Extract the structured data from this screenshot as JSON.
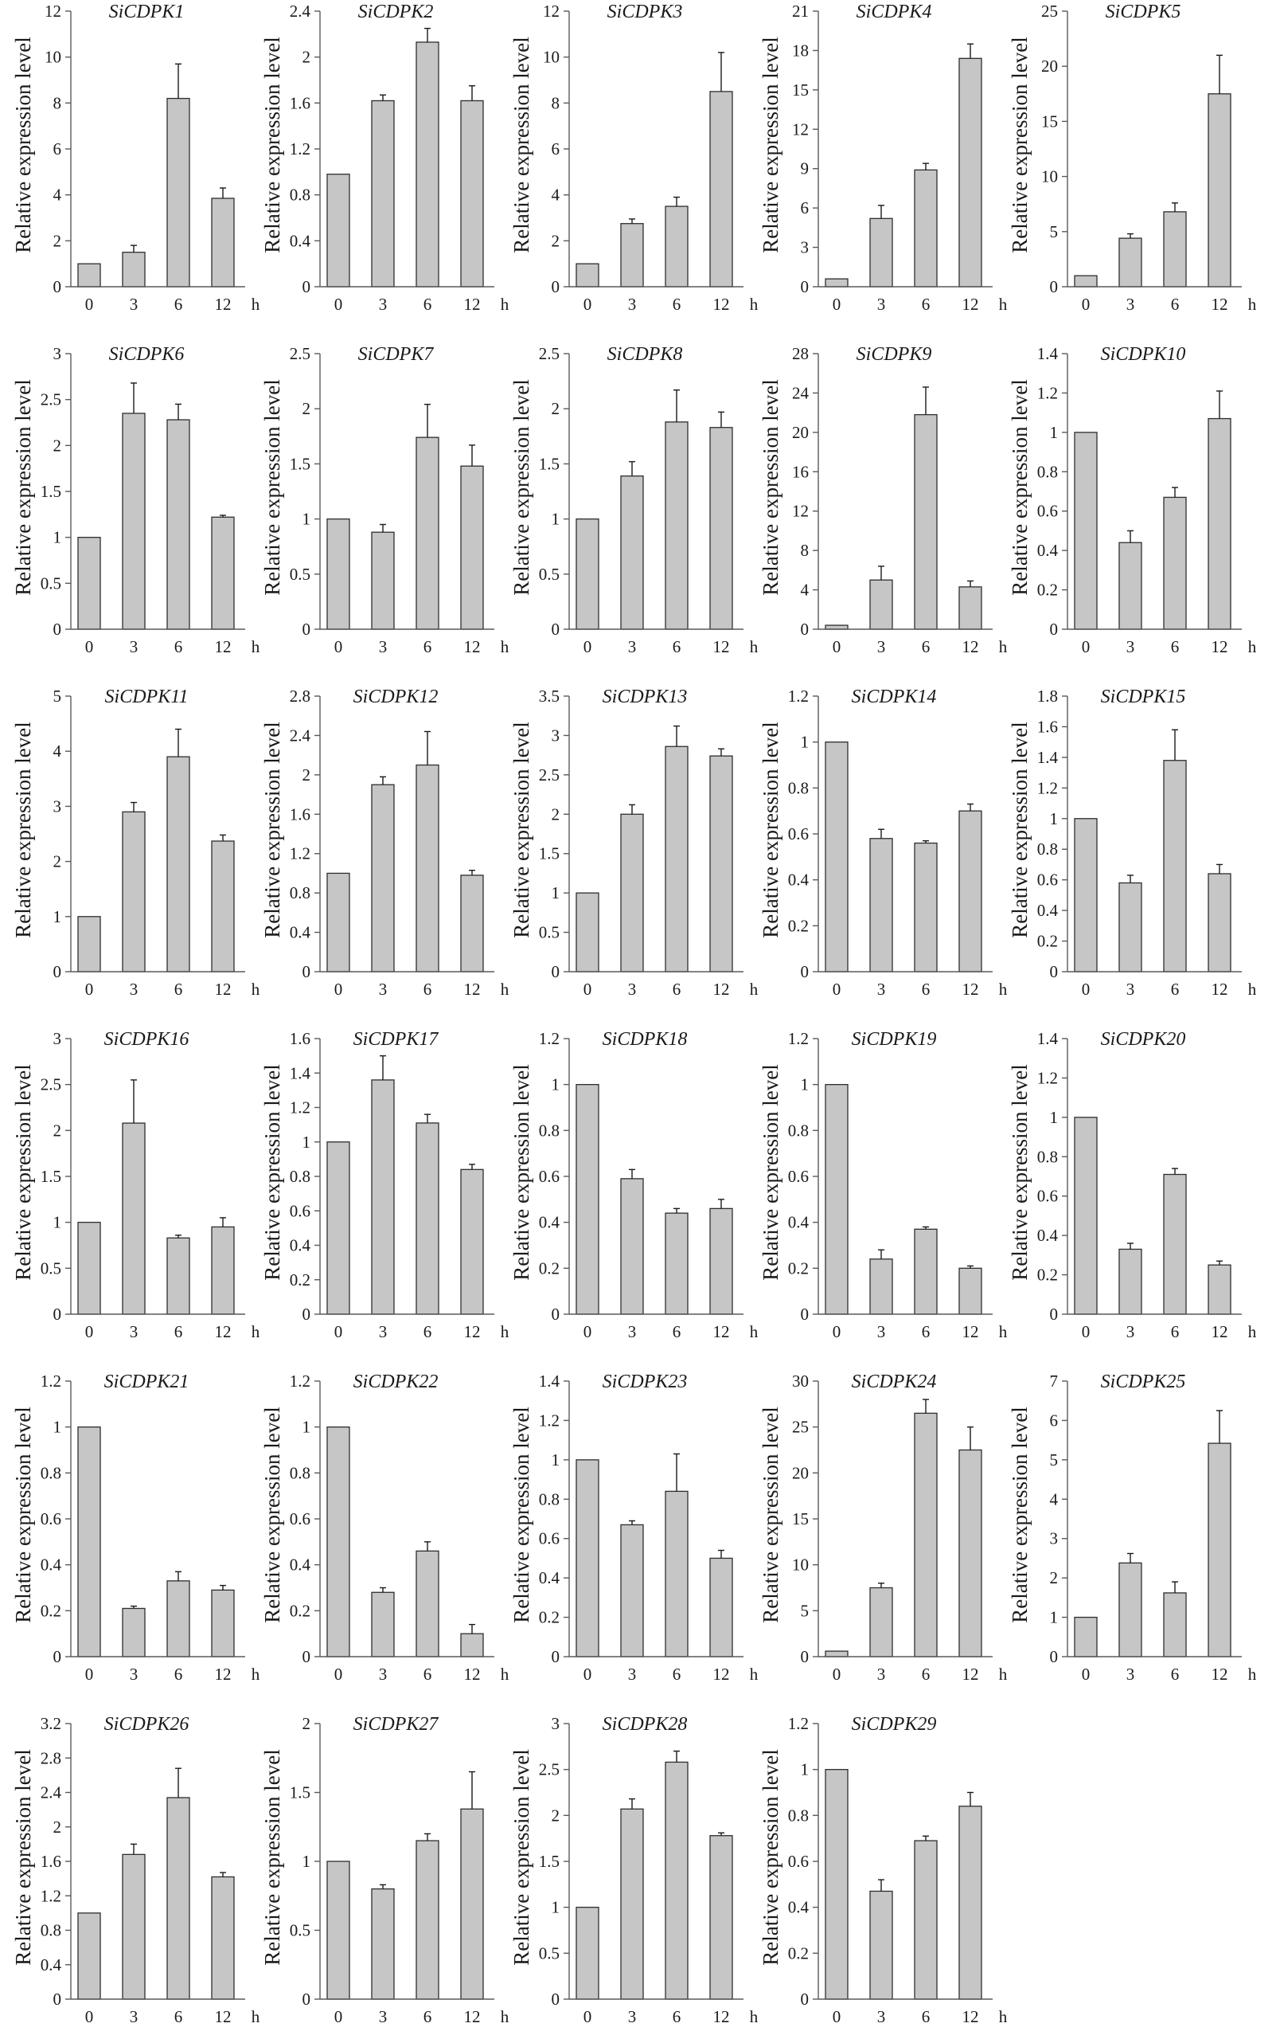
{
  "colors": {
    "bar_fill": "#c6c6c6",
    "bar_stroke": "#2e2e2e",
    "axis": "#5a5a5a",
    "error_bar": "#1a1a1a",
    "background": "#ffffff"
  },
  "chart_data": [
    {
      "type": "bar",
      "title": "SiCDPK1",
      "categories": [
        "0",
        "3",
        "6",
        "12"
      ],
      "values": [
        1.0,
        1.5,
        8.2,
        3.85
      ],
      "errors": [
        0,
        0.3,
        1.5,
        0.45
      ],
      "xlabel": "h",
      "ylabel": "Relative expression level",
      "ylim": [
        0,
        12
      ],
      "yticks": [
        0,
        2,
        4,
        6,
        8,
        10,
        12
      ]
    },
    {
      "type": "bar",
      "title": "SiCDPK2",
      "categories": [
        "0",
        "3",
        "6",
        "12"
      ],
      "values": [
        0.98,
        1.62,
        2.13,
        1.62
      ],
      "errors": [
        0,
        0.05,
        0.12,
        0.13
      ],
      "xlabel": "h",
      "ylabel": "Relative expression level",
      "ylim": [
        0,
        2.4
      ],
      "yticks": [
        0,
        0.4,
        0.8,
        1.2,
        1.6,
        2,
        2.4
      ]
    },
    {
      "type": "bar",
      "title": "SiCDPK3",
      "categories": [
        "0",
        "3",
        "6",
        "12"
      ],
      "values": [
        1.0,
        2.75,
        3.5,
        8.5
      ],
      "errors": [
        0,
        0.2,
        0.4,
        1.7
      ],
      "xlabel": "h",
      "ylabel": "Relative expression level",
      "ylim": [
        0,
        12
      ],
      "yticks": [
        0,
        2,
        4,
        6,
        8,
        10,
        12
      ]
    },
    {
      "type": "bar",
      "title": "SiCDPK4",
      "categories": [
        "0",
        "3",
        "6",
        "12"
      ],
      "values": [
        0.6,
        5.2,
        8.9,
        17.4
      ],
      "errors": [
        0,
        1.0,
        0.5,
        1.1
      ],
      "xlabel": "h",
      "ylabel": "Relative expression level",
      "ylim": [
        0,
        21
      ],
      "yticks": [
        0,
        3,
        6,
        9,
        12,
        15,
        18,
        21
      ]
    },
    {
      "type": "bar",
      "title": "SiCDPK5",
      "categories": [
        "0",
        "3",
        "6",
        "12"
      ],
      "values": [
        1.0,
        4.4,
        6.8,
        17.5
      ],
      "errors": [
        0,
        0.4,
        0.8,
        3.5
      ],
      "xlabel": "h",
      "ylabel": "Relative expression level",
      "ylim": [
        0,
        25
      ],
      "yticks": [
        0,
        5,
        10,
        15,
        20,
        25
      ]
    },
    {
      "type": "bar",
      "title": "SiCDPK6",
      "categories": [
        "0",
        "3",
        "6",
        "12"
      ],
      "values": [
        1.0,
        2.35,
        2.28,
        1.22
      ],
      "errors": [
        0,
        0.33,
        0.17,
        0.02
      ],
      "xlabel": "h",
      "ylabel": "Relative expression level",
      "ylim": [
        0,
        3
      ],
      "yticks": [
        0,
        0.5,
        1,
        1.5,
        2,
        2.5,
        3
      ]
    },
    {
      "type": "bar",
      "title": "SiCDPK7",
      "categories": [
        "0",
        "3",
        "6",
        "12"
      ],
      "values": [
        1.0,
        0.88,
        1.74,
        1.48
      ],
      "errors": [
        0,
        0.07,
        0.3,
        0.19
      ],
      "xlabel": "h",
      "ylabel": "Relative expression level",
      "ylim": [
        0,
        2.5
      ],
      "yticks": [
        0,
        0.5,
        1,
        1.5,
        2,
        2.5
      ]
    },
    {
      "type": "bar",
      "title": "SiCDPK8",
      "categories": [
        "0",
        "3",
        "6",
        "12"
      ],
      "values": [
        1.0,
        1.39,
        1.88,
        1.83
      ],
      "errors": [
        0,
        0.13,
        0.29,
        0.14
      ],
      "xlabel": "h",
      "ylabel": "Relative expression level",
      "ylim": [
        0,
        2.5
      ],
      "yticks": [
        0,
        0.5,
        1,
        1.5,
        2,
        2.5
      ]
    },
    {
      "type": "bar",
      "title": "SiCDPK9",
      "categories": [
        "0",
        "3",
        "6",
        "12"
      ],
      "values": [
        0.4,
        5.0,
        21.8,
        4.3
      ],
      "errors": [
        0,
        1.4,
        2.8,
        0.6
      ],
      "xlabel": "h",
      "ylabel": "Relative expression level",
      "ylim": [
        0,
        28
      ],
      "yticks": [
        0,
        4,
        8,
        12,
        16,
        20,
        24,
        28
      ]
    },
    {
      "type": "bar",
      "title": "SiCDPK10",
      "categories": [
        "0",
        "3",
        "6",
        "12"
      ],
      "values": [
        1.0,
        0.44,
        0.67,
        1.07
      ],
      "errors": [
        0,
        0.06,
        0.05,
        0.14
      ],
      "xlabel": "h",
      "ylabel": "Relative expression level",
      "ylim": [
        0,
        1.4
      ],
      "yticks": [
        0,
        0.2,
        0.4,
        0.6,
        0.8,
        1,
        1.2,
        1.4
      ]
    },
    {
      "type": "bar",
      "title": "SiCDPK11",
      "categories": [
        "0",
        "3",
        "6",
        "12"
      ],
      "values": [
        1.0,
        2.9,
        3.9,
        2.37
      ],
      "errors": [
        0,
        0.17,
        0.5,
        0.11
      ],
      "xlabel": "h",
      "ylabel": "Relative expression level",
      "ylim": [
        0,
        5
      ],
      "yticks": [
        0,
        1,
        2,
        3,
        4,
        5
      ]
    },
    {
      "type": "bar",
      "title": "SiCDPK12",
      "categories": [
        "0",
        "3",
        "6",
        "12"
      ],
      "values": [
        1.0,
        1.9,
        2.1,
        0.98
      ],
      "errors": [
        0,
        0.08,
        0.34,
        0.05
      ],
      "xlabel": "h",
      "ylabel": "Relative expression level",
      "ylim": [
        0,
        2.8
      ],
      "yticks": [
        0,
        0.4,
        0.8,
        1.2,
        1.6,
        2,
        2.4,
        2.8
      ]
    },
    {
      "type": "bar",
      "title": "SiCDPK13",
      "categories": [
        "0",
        "3",
        "6",
        "12"
      ],
      "values": [
        1.0,
        2.0,
        2.86,
        2.74
      ],
      "errors": [
        0,
        0.12,
        0.26,
        0.09
      ],
      "xlabel": "h",
      "ylabel": "Relative expression level",
      "ylim": [
        0,
        3.5
      ],
      "yticks": [
        0,
        0.5,
        1,
        1.5,
        2,
        2.5,
        3,
        3.5
      ]
    },
    {
      "type": "bar",
      "title": "SiCDPK14",
      "categories": [
        "0",
        "3",
        "6",
        "12"
      ],
      "values": [
        1.0,
        0.58,
        0.56,
        0.7
      ],
      "errors": [
        0,
        0.04,
        0.01,
        0.03
      ],
      "xlabel": "h",
      "ylabel": "Relative expression level",
      "ylim": [
        0,
        1.2
      ],
      "yticks": [
        0,
        0.2,
        0.4,
        0.6,
        0.8,
        1,
        1.2
      ]
    },
    {
      "type": "bar",
      "title": "SiCDPK15",
      "categories": [
        "0",
        "3",
        "6",
        "12"
      ],
      "values": [
        1.0,
        0.58,
        1.38,
        0.64
      ],
      "errors": [
        0,
        0.05,
        0.2,
        0.06
      ],
      "xlabel": "h",
      "ylabel": "Relative expression level",
      "ylim": [
        0,
        1.8
      ],
      "yticks": [
        0,
        0.2,
        0.4,
        0.6,
        0.8,
        1,
        1.2,
        1.4,
        1.6,
        1.8
      ]
    },
    {
      "type": "bar",
      "title": "SiCDPK16",
      "categories": [
        "0",
        "3",
        "6",
        "12"
      ],
      "values": [
        1.0,
        2.08,
        0.83,
        0.95
      ],
      "errors": [
        0,
        0.47,
        0.03,
        0.1
      ],
      "xlabel": "h",
      "ylabel": "Relative expression level",
      "ylim": [
        0,
        3
      ],
      "yticks": [
        0,
        0.5,
        1,
        1.5,
        2,
        2.5,
        3
      ]
    },
    {
      "type": "bar",
      "title": "SiCDPK17",
      "categories": [
        "0",
        "3",
        "6",
        "12"
      ],
      "values": [
        1.0,
        1.36,
        1.11,
        0.84
      ],
      "errors": [
        0,
        0.14,
        0.05,
        0.03
      ],
      "xlabel": "h",
      "ylabel": "Relative expression level",
      "ylim": [
        0,
        1.6
      ],
      "yticks": [
        0,
        0.2,
        0.4,
        0.6,
        0.8,
        1,
        1.2,
        1.4,
        1.6
      ]
    },
    {
      "type": "bar",
      "title": "SiCDPK18",
      "categories": [
        "0",
        "3",
        "6",
        "12"
      ],
      "values": [
        1.0,
        0.59,
        0.44,
        0.46
      ],
      "errors": [
        0,
        0.04,
        0.02,
        0.04
      ],
      "xlabel": "h",
      "ylabel": "Relative expression level",
      "ylim": [
        0,
        1.2
      ],
      "yticks": [
        0,
        0.2,
        0.4,
        0.6,
        0.8,
        1,
        1.2
      ]
    },
    {
      "type": "bar",
      "title": "SiCDPK19",
      "categories": [
        "0",
        "3",
        "6",
        "12"
      ],
      "values": [
        1.0,
        0.24,
        0.37,
        0.2
      ],
      "errors": [
        0,
        0.04,
        0.01,
        0.01
      ],
      "xlabel": "h",
      "ylabel": "Relative expression level",
      "ylim": [
        0,
        1.2
      ],
      "yticks": [
        0,
        0.2,
        0.4,
        0.6,
        0.8,
        1,
        1.2
      ]
    },
    {
      "type": "bar",
      "title": "SiCDPK20",
      "categories": [
        "0",
        "3",
        "6",
        "12"
      ],
      "values": [
        1.0,
        0.33,
        0.71,
        0.25
      ],
      "errors": [
        0,
        0.03,
        0.03,
        0.02
      ],
      "xlabel": "h",
      "ylabel": "Relative expression level",
      "ylim": [
        0,
        1.4
      ],
      "yticks": [
        0,
        0.2,
        0.4,
        0.6,
        0.8,
        1,
        1.2,
        1.4
      ]
    },
    {
      "type": "bar",
      "title": "SiCDPK21",
      "categories": [
        "0",
        "3",
        "6",
        "12"
      ],
      "values": [
        1.0,
        0.21,
        0.33,
        0.29
      ],
      "errors": [
        0,
        0.01,
        0.04,
        0.02
      ],
      "xlabel": "h",
      "ylabel": "Relative expression level",
      "ylim": [
        0,
        1.2
      ],
      "yticks": [
        0,
        0.2,
        0.4,
        0.6,
        0.8,
        1,
        1.2
      ]
    },
    {
      "type": "bar",
      "title": "SiCDPK22",
      "categories": [
        "0",
        "3",
        "6",
        "12"
      ],
      "values": [
        1.0,
        0.28,
        0.46,
        0.1
      ],
      "errors": [
        0,
        0.02,
        0.04,
        0.04
      ],
      "xlabel": "h",
      "ylabel": "Relative expression level",
      "ylim": [
        0,
        1.2
      ],
      "yticks": [
        0,
        0.2,
        0.4,
        0.6,
        0.8,
        1,
        1.2
      ]
    },
    {
      "type": "bar",
      "title": "SiCDPK23",
      "categories": [
        "0",
        "3",
        "6",
        "12"
      ],
      "values": [
        1.0,
        0.67,
        0.84,
        0.5
      ],
      "errors": [
        0,
        0.02,
        0.19,
        0.04
      ],
      "xlabel": "h",
      "ylabel": "Relative expression level",
      "ylim": [
        0,
        1.4
      ],
      "yticks": [
        0,
        0.2,
        0.4,
        0.6,
        0.8,
        1,
        1.2,
        1.4
      ]
    },
    {
      "type": "bar",
      "title": "SiCDPK24",
      "categories": [
        "0",
        "3",
        "6",
        "12"
      ],
      "values": [
        0.6,
        7.5,
        26.5,
        22.5
      ],
      "errors": [
        0,
        0.5,
        1.5,
        2.5
      ],
      "xlabel": "h",
      "ylabel": "Relative expression level",
      "ylim": [
        0,
        30
      ],
      "yticks": [
        0,
        5,
        10,
        15,
        20,
        25,
        30
      ]
    },
    {
      "type": "bar",
      "title": "SiCDPK25",
      "categories": [
        "0",
        "3",
        "6",
        "12"
      ],
      "values": [
        1.0,
        2.38,
        1.62,
        5.42
      ],
      "errors": [
        0,
        0.24,
        0.28,
        0.83
      ],
      "xlabel": "h",
      "ylabel": "Relative expression level",
      "ylim": [
        0,
        7
      ],
      "yticks": [
        0,
        1,
        2,
        3,
        4,
        5,
        6,
        7
      ]
    },
    {
      "type": "bar",
      "title": "SiCDPK26",
      "categories": [
        "0",
        "3",
        "6",
        "12"
      ],
      "values": [
        1.0,
        1.68,
        2.34,
        1.42
      ],
      "errors": [
        0,
        0.12,
        0.34,
        0.05
      ],
      "xlabel": "h",
      "ylabel": "Relative expression level",
      "ylim": [
        0,
        3.2
      ],
      "yticks": [
        0,
        0.4,
        0.8,
        1.2,
        1.6,
        2,
        2.4,
        2.8,
        3.2
      ]
    },
    {
      "type": "bar",
      "title": "SiCDPK27",
      "categories": [
        "0",
        "3",
        "6",
        "12"
      ],
      "values": [
        1.0,
        0.8,
        1.15,
        1.38
      ],
      "errors": [
        0,
        0.03,
        0.05,
        0.27
      ],
      "xlabel": "h",
      "ylabel": "Relative expression level",
      "ylim": [
        0,
        2
      ],
      "yticks": [
        0,
        0.5,
        1,
        1.5,
        2
      ]
    },
    {
      "type": "bar",
      "title": "SiCDPK28",
      "categories": [
        "0",
        "3",
        "6",
        "12"
      ],
      "values": [
        1.0,
        2.07,
        2.58,
        1.78
      ],
      "errors": [
        0,
        0.11,
        0.12,
        0.03
      ],
      "xlabel": "h",
      "ylabel": "Relative expression level",
      "ylim": [
        0,
        3
      ],
      "yticks": [
        0,
        0.5,
        1,
        1.5,
        2,
        2.5,
        3
      ]
    },
    {
      "type": "bar",
      "title": "SiCDPK29",
      "categories": [
        "0",
        "3",
        "6",
        "12"
      ],
      "values": [
        1.0,
        0.47,
        0.69,
        0.84
      ],
      "errors": [
        0,
        0.05,
        0.02,
        0.06
      ],
      "xlabel": "h",
      "ylabel": "Relative expression level",
      "ylim": [
        0,
        1.2
      ],
      "yticks": [
        0,
        0.2,
        0.4,
        0.6,
        0.8,
        1,
        1.2
      ]
    }
  ]
}
